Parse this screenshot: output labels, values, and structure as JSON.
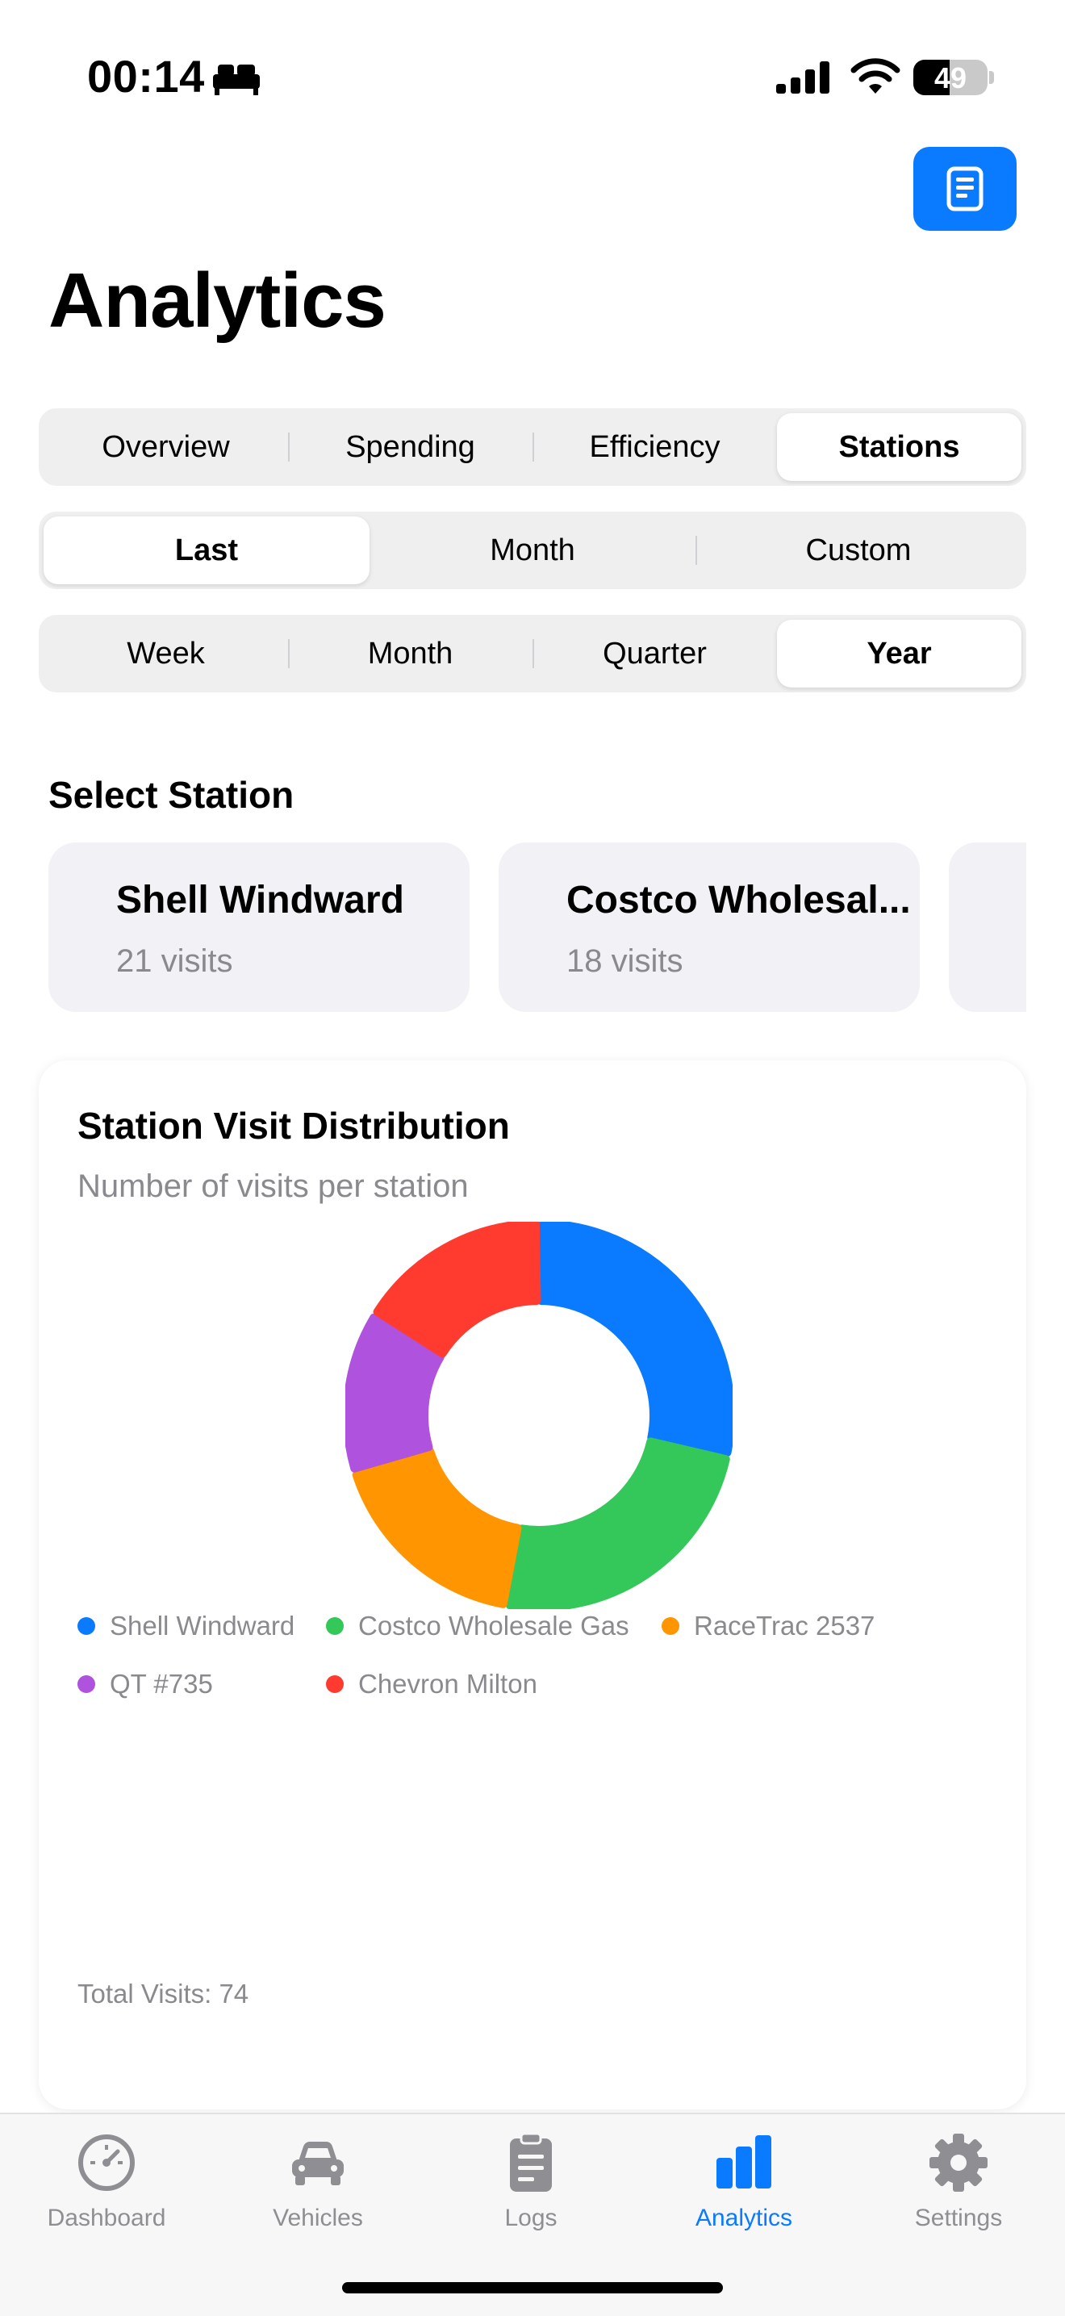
{
  "status_bar": {
    "time": "00:14",
    "battery": "49",
    "battery_level": 0.49
  },
  "header": {
    "title": "Analytics",
    "icon": "document-icon"
  },
  "tabs": [
    {
      "label": "Overview",
      "selected": false
    },
    {
      "label": "Spending",
      "selected": false
    },
    {
      "label": "Efficiency",
      "selected": false
    },
    {
      "label": "Stations",
      "selected": true
    }
  ],
  "period_mode": [
    {
      "label": "Last",
      "selected": true
    },
    {
      "label": "Month",
      "selected": false
    },
    {
      "label": "Custom",
      "selected": false
    }
  ],
  "period_range": [
    {
      "label": "Week",
      "selected": false
    },
    {
      "label": "Month",
      "selected": false
    },
    {
      "label": "Quarter",
      "selected": false
    },
    {
      "label": "Year",
      "selected": true
    }
  ],
  "select_station": {
    "title": "Select Station",
    "stations": [
      {
        "name": "Shell Windward",
        "visits": "21 visits"
      },
      {
        "name": "Costco Wholesal...",
        "visits": "18 visits"
      }
    ]
  },
  "distribution": {
    "title": "Station Visit Distribution",
    "subtitle": "Number of visits per station",
    "total": "Total Visits: 74"
  },
  "chart_data": {
    "type": "pie",
    "donut": true,
    "title": "Station Visit Distribution",
    "subtitle": "Number of visits per station",
    "legend_position": "bottom",
    "series": [
      {
        "name": "Shell Windward",
        "value": 21,
        "color": "#0a7aff"
      },
      {
        "name": "Costco Wholesale Gas",
        "value": 18,
        "color": "#34c759"
      },
      {
        "name": "RaceTrac 2537",
        "value": 13,
        "color": "#ff9500"
      },
      {
        "name": "QT #735",
        "value": 10,
        "color": "#af52de"
      },
      {
        "name": "Chevron Milton",
        "value": 12,
        "color": "#ff3b30"
      }
    ]
  },
  "tabbar": [
    {
      "label": "Dashboard",
      "icon": "gauge-icon",
      "active": false
    },
    {
      "label": "Vehicles",
      "icon": "car-icon",
      "active": false
    },
    {
      "label": "Logs",
      "icon": "clipboard-icon",
      "active": false
    },
    {
      "label": "Analytics",
      "icon": "bar-chart-icon",
      "active": true
    },
    {
      "label": "Settings",
      "icon": "gear-icon",
      "active": false
    }
  ],
  "colors": {
    "accent": "#0a7aff",
    "inactive": "#8e8e93"
  }
}
